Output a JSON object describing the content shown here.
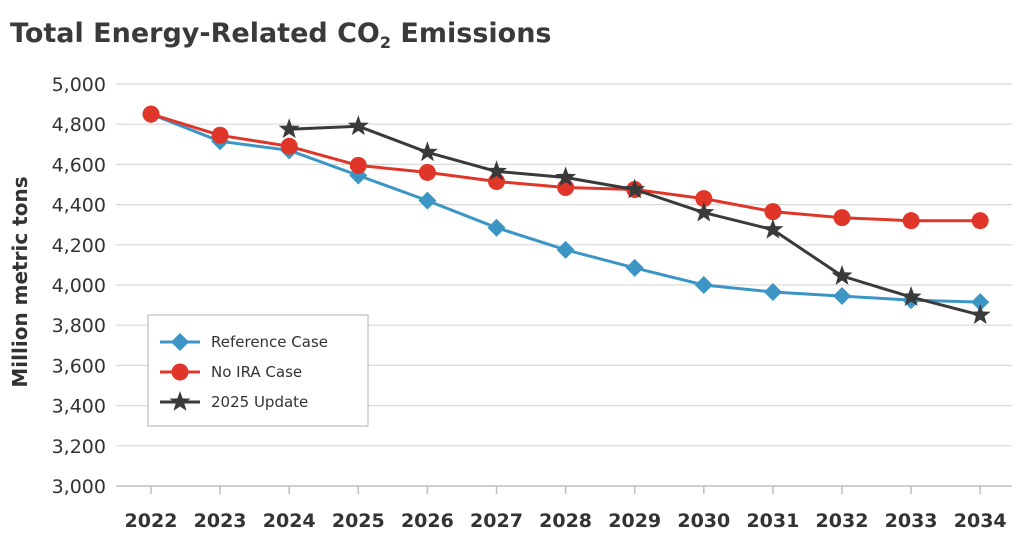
{
  "chart_data": {
    "type": "line",
    "title_main": "Total Energy-Related CO",
    "title_sub": "2",
    "title_tail": " Emissions",
    "ylabel": "Million metric tons",
    "xlabel": "",
    "ylim": [
      3000,
      5000
    ],
    "y_ticks": [
      3000,
      3200,
      3400,
      3600,
      3800,
      4000,
      4200,
      4400,
      4600,
      4800,
      5000
    ],
    "y_tick_labels": [
      "3,000",
      "3,200",
      "3,400",
      "3,600",
      "3,800",
      "4,000",
      "4,200",
      "4,400",
      "4,600",
      "4,800",
      "5,000"
    ],
    "categories": [
      "2022",
      "2023",
      "2024",
      "2025",
      "2026",
      "2027",
      "2028",
      "2029",
      "2030",
      "2031",
      "2032",
      "2033",
      "2034"
    ],
    "grid": true,
    "legend_position": "bottom-left",
    "series": [
      {
        "name": "Reference Case",
        "marker": "diamond",
        "color": "#3b96c5",
        "values": [
          4850,
          4715,
          4670,
          4545,
          4420,
          4285,
          4175,
          4085,
          4000,
          3965,
          3945,
          3925,
          3915
        ]
      },
      {
        "name": "No IRA Case",
        "marker": "circle",
        "color": "#e0362a",
        "values": [
          4850,
          4745,
          4690,
          4595,
          4560,
          4515,
          4485,
          4475,
          4430,
          4365,
          4335,
          4320,
          4320
        ]
      },
      {
        "name": "2025 Update",
        "marker": "star",
        "color": "#3a3a3a",
        "values": [
          null,
          null,
          4775,
          4790,
          4660,
          4565,
          4535,
          4475,
          4360,
          4275,
          4045,
          3940,
          3850
        ]
      }
    ]
  }
}
